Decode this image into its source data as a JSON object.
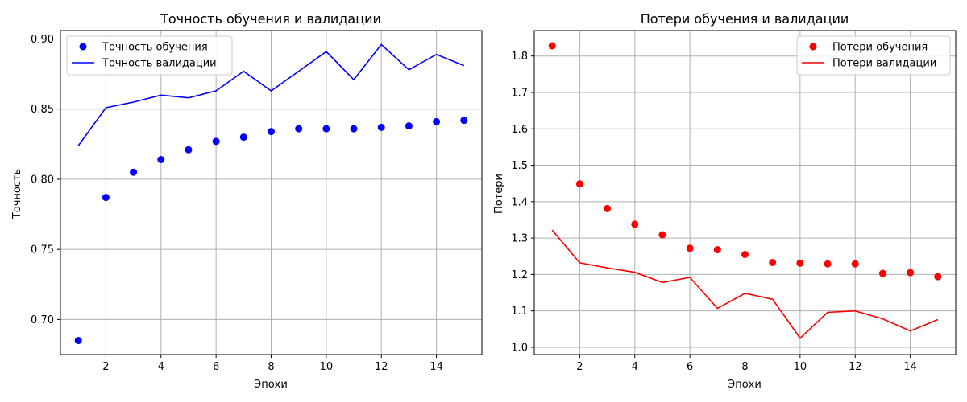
{
  "chart_data": [
    {
      "type": "line",
      "title": "Точность обучения и валидации",
      "xlabel": "Эпохи",
      "ylabel": "Точность",
      "xlim": [
        0.35,
        15.65
      ],
      "ylim": [
        0.675,
        0.906
      ],
      "xticks": [
        2,
        4,
        6,
        8,
        10,
        12,
        14
      ],
      "yticks": [
        0.7,
        0.75,
        0.8,
        0.85,
        0.9
      ],
      "ytick_format": 2,
      "grid": true,
      "legend_position": "top-left",
      "series": [
        {
          "name": "Точность обучения",
          "style": "markers",
          "color": "#0000ff",
          "x": [
            1,
            2,
            3,
            4,
            5,
            6,
            7,
            8,
            9,
            10,
            11,
            12,
            13,
            14,
            15
          ],
          "y": [
            0.685,
            0.787,
            0.805,
            0.814,
            0.821,
            0.827,
            0.83,
            0.834,
            0.836,
            0.836,
            0.836,
            0.837,
            0.838,
            0.841,
            0.842
          ]
        },
        {
          "name": "Точность валидации",
          "style": "line",
          "color": "#0000ff",
          "x": [
            1,
            2,
            3,
            4,
            5,
            6,
            7,
            8,
            9,
            10,
            11,
            12,
            13,
            14,
            15
          ],
          "y": [
            0.824,
            0.851,
            0.855,
            0.86,
            0.858,
            0.863,
            0.877,
            0.863,
            0.877,
            0.891,
            0.871,
            0.896,
            0.878,
            0.889,
            0.881
          ]
        }
      ]
    },
    {
      "type": "line",
      "title": "Потери обучения и валидации",
      "xlabel": "Эпохи",
      "ylabel": "Потери",
      "xlim": [
        0.35,
        15.65
      ],
      "ylim": [
        0.98,
        1.87
      ],
      "xticks": [
        2,
        4,
        6,
        8,
        10,
        12,
        14
      ],
      "yticks": [
        1.0,
        1.1,
        1.2,
        1.3,
        1.4,
        1.5,
        1.6,
        1.7,
        1.8
      ],
      "ytick_format": 1,
      "grid": true,
      "legend_position": "top-right",
      "series": [
        {
          "name": "Потери обучения",
          "style": "markers",
          "color": "#ff0000",
          "x": [
            1,
            2,
            3,
            4,
            5,
            6,
            7,
            8,
            9,
            10,
            11,
            12,
            13,
            14,
            15
          ],
          "y": [
            1.828,
            1.449,
            1.381,
            1.338,
            1.309,
            1.272,
            1.268,
            1.255,
            1.233,
            1.231,
            1.229,
            1.229,
            1.203,
            1.205,
            1.194
          ]
        },
        {
          "name": "Потери валидации",
          "style": "line",
          "color": "#ff0000",
          "x": [
            1,
            2,
            3,
            4,
            5,
            6,
            7,
            8,
            9,
            10,
            11,
            12,
            13,
            14,
            15
          ],
          "y": [
            1.322,
            1.232,
            1.218,
            1.206,
            1.178,
            1.192,
            1.107,
            1.148,
            1.132,
            1.025,
            1.096,
            1.1,
            1.078,
            1.045,
            1.076
          ]
        }
      ]
    }
  ]
}
